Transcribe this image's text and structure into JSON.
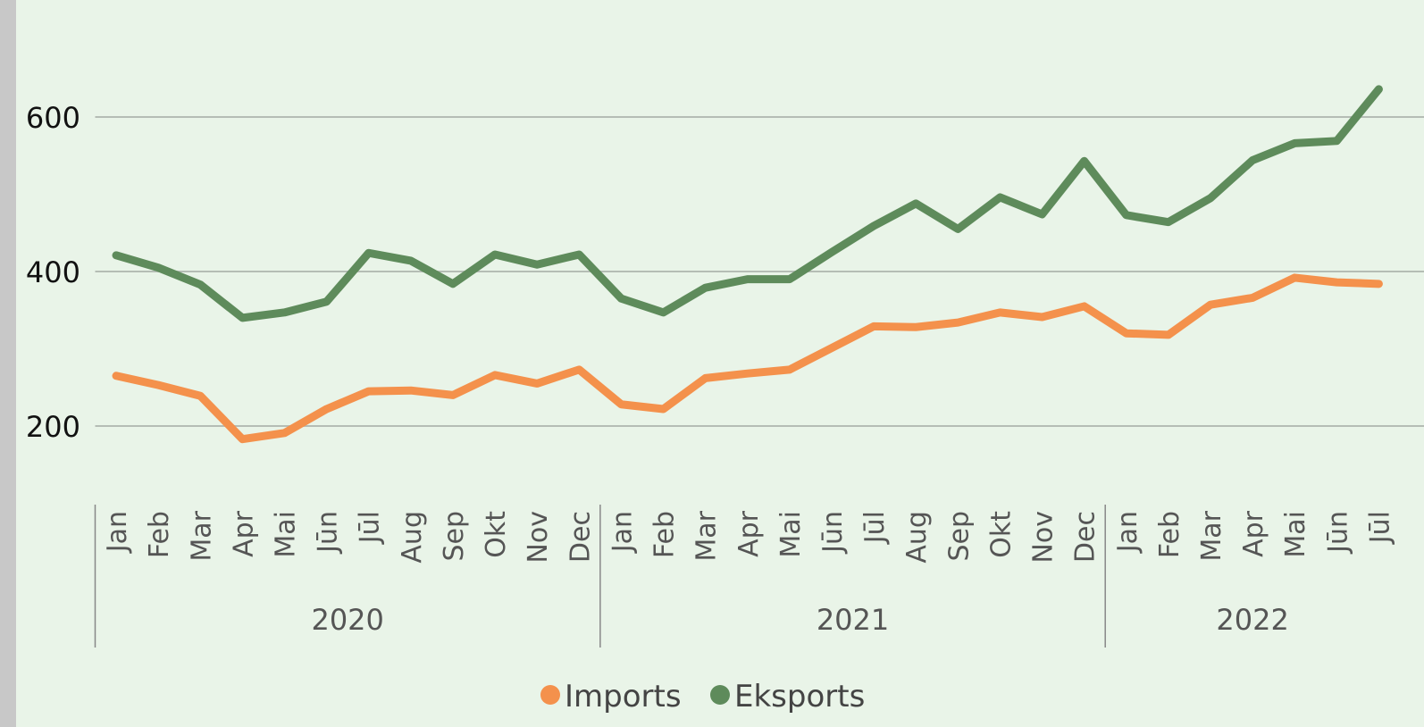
{
  "chart_data": {
    "type": "line",
    "groups": [
      {
        "name": "2020",
        "categories": [
          "Jan",
          "Feb",
          "Mar",
          "Apr",
          "Mai",
          "Jūn",
          "Jūl",
          "Aug",
          "Sep",
          "Okt",
          "Nov",
          "Dec"
        ]
      },
      {
        "name": "2021",
        "categories": [
          "Jan",
          "Feb",
          "Mar",
          "Apr",
          "Mai",
          "Jūn",
          "Jūl",
          "Aug",
          "Sep",
          "Okt",
          "Nov",
          "Dec"
        ]
      },
      {
        "name": "2022",
        "categories": [
          "Jan",
          "Feb",
          "Mar",
          "Apr",
          "Mai",
          "Jūn",
          "Jūl"
        ]
      }
    ],
    "series": [
      {
        "name": "Imports",
        "color": "#f4914c",
        "values": [
          265,
          253,
          239,
          183,
          191,
          222,
          245,
          246,
          240,
          266,
          255,
          273,
          228,
          222,
          262,
          268,
          273,
          301,
          329,
          328,
          334,
          347,
          341,
          355,
          320,
          318,
          357,
          366,
          392,
          386,
          384
        ]
      },
      {
        "name": "Eksports",
        "color": "#5e8b5b",
        "values": [
          421,
          405,
          383,
          340,
          347,
          361,
          424,
          414,
          384,
          422,
          409,
          422,
          365,
          347,
          379,
          390,
          390,
          425,
          459,
          488,
          455,
          496,
          474,
          543,
          473,
          464,
          495,
          544,
          566,
          569,
          636
        ]
      }
    ],
    "ylim": [
      100,
      700
    ],
    "yticks": [
      200,
      400,
      600
    ],
    "grid": true,
    "legend": "bottom"
  }
}
